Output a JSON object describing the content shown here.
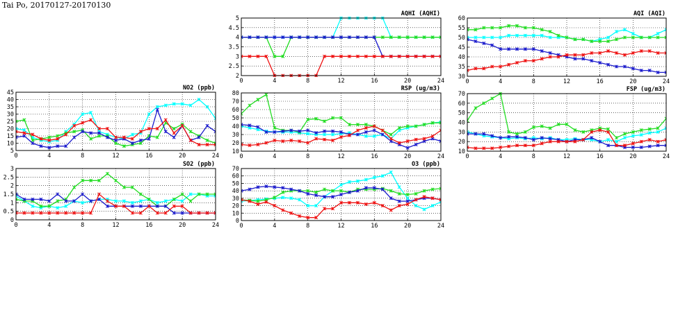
{
  "page": {
    "title": "Tai Po, 20170127-20170130"
  },
  "colors": {
    "cyan": "#00ffff",
    "green": "#22dd22",
    "blue": "#1a1acc",
    "red": "#ee1111"
  },
  "chart_data": [
    {
      "id": "no2",
      "type": "line",
      "title": "NO2 (ppb)",
      "xlim": [
        0,
        24
      ],
      "ylim": [
        5,
        45
      ],
      "xticks": [
        0,
        4,
        8,
        12,
        16,
        20,
        24
      ],
      "yticks": [
        5,
        10,
        15,
        20,
        25,
        30,
        35,
        40,
        45
      ],
      "grid": true,
      "series": [
        {
          "color": "cyan",
          "values": [
            20,
            19,
            14,
            12,
            11,
            12,
            18,
            23,
            30,
            31,
            18,
            16,
            14,
            13,
            16,
            17,
            30,
            35,
            36,
            37,
            37,
            36,
            40,
            35,
            27
          ]
        },
        {
          "color": "green",
          "values": [
            25,
            26,
            12,
            13,
            14,
            15,
            17,
            18,
            19,
            13,
            15,
            15,
            10,
            8,
            9,
            10,
            15,
            14,
            24,
            20,
            23,
            18,
            15,
            12,
            10
          ]
        },
        {
          "color": "blue",
          "values": [
            14,
            15,
            10,
            8,
            7,
            8,
            8,
            14,
            18,
            17,
            17,
            14,
            12,
            13,
            10,
            12,
            13,
            33,
            18,
            14,
            22,
            12,
            14,
            22,
            18
          ]
        },
        {
          "color": "red",
          "values": [
            18,
            17,
            16,
            13,
            12,
            13,
            16,
            22,
            24,
            26,
            20,
            20,
            14,
            14,
            13,
            18,
            20,
            20,
            26,
            17,
            22,
            12,
            9,
            9,
            9
          ]
        }
      ]
    },
    {
      "id": "so2",
      "type": "line",
      "title": "SO2 (ppb)",
      "xlim": [
        0,
        24
      ],
      "ylim": [
        0,
        3
      ],
      "xticks": [
        0,
        4,
        8,
        12,
        16,
        20,
        24
      ],
      "yticks": [
        0,
        0.5,
        1,
        1.5,
        2,
        2.5,
        3
      ],
      "grid": true,
      "series": [
        {
          "color": "cyan",
          "values": [
            1.4,
            1.1,
            0.8,
            0.7,
            0.8,
            0.7,
            0.8,
            1.1,
            1.0,
            1.1,
            1.2,
            1.2,
            1.1,
            1.1,
            1.0,
            1.1,
            1.2,
            1.0,
            1.1,
            1.2,
            1.1,
            1.5,
            1.5,
            1.4,
            1.4
          ]
        },
        {
          "color": "green",
          "values": [
            1.2,
            1.1,
            1.1,
            0.8,
            0.8,
            1.1,
            1.2,
            1.9,
            2.3,
            2.3,
            2.3,
            2.7,
            2.3,
            1.9,
            1.9,
            1.5,
            1.2,
            0.8,
            0.8,
            1.2,
            1.5,
            1.1,
            1.5,
            1.5,
            1.5
          ]
        },
        {
          "color": "blue",
          "values": [
            1.5,
            1.2,
            1.2,
            1.2,
            1.1,
            1.5,
            1.1,
            1.1,
            1.5,
            1.1,
            1.2,
            0.8,
            0.8,
            0.8,
            0.8,
            0.8,
            0.8,
            0.8,
            0.8,
            0.4,
            0.4,
            0.4,
            0.4,
            0.4,
            0.4
          ]
        },
        {
          "color": "red",
          "values": [
            0.4,
            0.4,
            0.4,
            0.4,
            0.4,
            0.4,
            0.4,
            0.4,
            0.4,
            0.4,
            1.5,
            1.1,
            0.8,
            0.8,
            0.4,
            0.4,
            0.8,
            0.4,
            0.4,
            0.8,
            0.8,
            0.4,
            0.4,
            0.4,
            0.4
          ]
        }
      ]
    },
    {
      "id": "aqhi",
      "type": "line",
      "title": "AQHI (AQHI)",
      "xlim": [
        0,
        24
      ],
      "ylim": [
        2,
        5
      ],
      "xticks": [
        0,
        4,
        8,
        12,
        16,
        20,
        24
      ],
      "yticks": [
        2,
        2.5,
        3,
        3.5,
        4,
        4.5,
        5
      ],
      "grid": true,
      "series": [
        {
          "color": "cyan",
          "values": [
            4,
            4,
            4,
            4,
            4,
            4,
            4,
            4,
            4,
            4,
            4,
            4,
            5,
            5,
            5,
            5,
            5,
            5,
            4,
            4,
            4,
            4,
            4,
            4,
            4
          ]
        },
        {
          "color": "green",
          "values": [
            4,
            4,
            4,
            4,
            3,
            3,
            4,
            4,
            4,
            4,
            4,
            4,
            4,
            4,
            4,
            4,
            4,
            4,
            4,
            4,
            4,
            4,
            4,
            4,
            4
          ]
        },
        {
          "color": "blue",
          "values": [
            4,
            4,
            4,
            4,
            4,
            4,
            4,
            4,
            4,
            4,
            4,
            4,
            4,
            4,
            4,
            4,
            4,
            3,
            3,
            3,
            3,
            3,
            3,
            3,
            3
          ]
        },
        {
          "color": "red",
          "values": [
            3,
            3,
            3,
            3,
            2,
            2,
            2,
            2,
            2,
            2,
            3,
            3,
            3,
            3,
            3,
            3,
            3,
            3,
            3,
            3,
            3,
            3,
            3,
            3,
            3
          ]
        }
      ]
    },
    {
      "id": "rsp",
      "type": "line",
      "title": "RSP (ug/m3)",
      "xlim": [
        0,
        24
      ],
      "ylim": [
        10,
        80
      ],
      "xticks": [
        0,
        4,
        8,
        12,
        16,
        20,
        24
      ],
      "yticks": [
        10,
        20,
        30,
        40,
        50,
        60,
        70,
        80
      ],
      "grid": true,
      "series": [
        {
          "color": "cyan",
          "values": [
            40,
            38,
            36,
            34,
            33,
            33,
            33,
            32,
            31,
            30,
            30,
            30,
            31,
            32,
            30,
            28,
            28,
            30,
            25,
            35,
            38,
            40,
            42,
            44,
            45
          ]
        },
        {
          "color": "green",
          "values": [
            55,
            65,
            72,
            78,
            38,
            35,
            35,
            33,
            48,
            49,
            46,
            50,
            50,
            42,
            42,
            42,
            40,
            35,
            30,
            38,
            40,
            40,
            42,
            44,
            44
          ]
        },
        {
          "color": "blue",
          "values": [
            42,
            41,
            39,
            33,
            33,
            34,
            35,
            34,
            35,
            32,
            34,
            34,
            33,
            30,
            30,
            33,
            35,
            30,
            22,
            18,
            14,
            18,
            22,
            25,
            22
          ]
        },
        {
          "color": "red",
          "values": [
            18,
            17,
            18,
            20,
            23,
            22,
            23,
            22,
            20,
            25,
            24,
            23,
            27,
            29,
            35,
            38,
            40,
            35,
            25,
            20,
            22,
            24,
            25,
            28,
            35
          ]
        }
      ]
    },
    {
      "id": "o3",
      "type": "line",
      "title": "O3 (ppb)",
      "xlim": [
        0,
        24
      ],
      "ylim": [
        0,
        70
      ],
      "xticks": [
        0,
        4,
        8,
        12,
        16,
        20,
        24
      ],
      "yticks": [
        0,
        10,
        20,
        30,
        40,
        50,
        60,
        70
      ],
      "grid": true,
      "series": [
        {
          "color": "cyan",
          "values": [
            26,
            27,
            28,
            29,
            30,
            31,
            30,
            28,
            20,
            20,
            32,
            40,
            48,
            52,
            53,
            55,
            58,
            60,
            65,
            45,
            30,
            20,
            15,
            20,
            25
          ]
        },
        {
          "color": "green",
          "values": [
            28,
            27,
            26,
            28,
            31,
            38,
            40,
            40,
            40,
            38,
            42,
            40,
            40,
            38,
            42,
            42,
            42,
            43,
            40,
            36,
            35,
            36,
            40,
            42,
            43
          ]
        },
        {
          "color": "blue",
          "values": [
            40,
            42,
            45,
            46,
            45,
            44,
            42,
            40,
            36,
            34,
            32,
            32,
            35,
            38,
            40,
            44,
            44,
            42,
            30,
            26,
            26,
            28,
            30,
            30,
            28
          ]
        },
        {
          "color": "red",
          "values": [
            28,
            26,
            22,
            25,
            20,
            14,
            10,
            6,
            4,
            4,
            16,
            16,
            24,
            24,
            24,
            22,
            24,
            20,
            14,
            20,
            22,
            28,
            32,
            30,
            28
          ]
        }
      ]
    },
    {
      "id": "aqi",
      "type": "line",
      "title": "AQI (AQI)",
      "xlim": [
        0,
        24
      ],
      "ylim": [
        30,
        60
      ],
      "xticks": [
        0,
        4,
        8,
        12,
        16,
        20,
        24
      ],
      "yticks": [
        30,
        35,
        40,
        45,
        50,
        55,
        60
      ],
      "grid": true,
      "series": [
        {
          "color": "cyan",
          "values": [
            50,
            50,
            50,
            50,
            50,
            51,
            51,
            51,
            51,
            51,
            50,
            50,
            50,
            49,
            49,
            48,
            49,
            50,
            53,
            54,
            52,
            50,
            50,
            52,
            54
          ]
        },
        {
          "color": "green",
          "values": [
            54,
            54,
            55,
            55,
            55,
            56,
            56,
            55,
            55,
            54,
            53,
            51,
            50,
            49,
            49,
            48,
            48,
            48,
            49,
            50,
            50,
            50,
            50,
            50,
            50
          ]
        },
        {
          "color": "blue",
          "values": [
            49,
            48,
            47,
            46,
            44,
            44,
            44,
            44,
            44,
            43,
            42,
            41,
            40,
            39,
            39,
            38,
            37,
            36,
            35,
            35,
            34,
            33,
            33,
            32,
            32
          ]
        },
        {
          "color": "red",
          "values": [
            33,
            34,
            34,
            35,
            35,
            36,
            37,
            38,
            38,
            39,
            40,
            40,
            41,
            41,
            41,
            42,
            42,
            43,
            42,
            41,
            42,
            43,
            43,
            42,
            42
          ]
        }
      ]
    },
    {
      "id": "fsp",
      "type": "line",
      "title": "FSP (ug/m3)",
      "xlim": [
        0,
        24
      ],
      "ylim": [
        10,
        70
      ],
      "xticks": [
        0,
        4,
        8,
        12,
        16,
        20,
        24
      ],
      "yticks": [
        10,
        20,
        30,
        40,
        50,
        60,
        70
      ],
      "grid": true,
      "series": [
        {
          "color": "cyan",
          "values": [
            30,
            28,
            26,
            25,
            24,
            23,
            24,
            23,
            24,
            23,
            24,
            22,
            22,
            23,
            22,
            22,
            20,
            22,
            20,
            24,
            26,
            27,
            29,
            30,
            34
          ]
        },
        {
          "color": "green",
          "values": [
            42,
            55,
            60,
            65,
            70,
            30,
            28,
            30,
            35,
            36,
            34,
            38,
            38,
            32,
            30,
            32,
            34,
            33,
            24,
            28,
            30,
            32,
            33,
            34,
            44
          ]
        },
        {
          "color": "blue",
          "values": [
            28,
            28,
            28,
            26,
            24,
            25,
            25,
            24,
            22,
            24,
            23,
            22,
            20,
            22,
            22,
            24,
            20,
            16,
            16,
            14,
            14,
            14,
            15,
            16,
            16
          ]
        },
        {
          "color": "red",
          "values": [
            14,
            13,
            13,
            13,
            14,
            15,
            16,
            16,
            16,
            18,
            20,
            20,
            20,
            20,
            22,
            30,
            32,
            30,
            16,
            16,
            18,
            20,
            22,
            20,
            22
          ]
        }
      ]
    }
  ]
}
